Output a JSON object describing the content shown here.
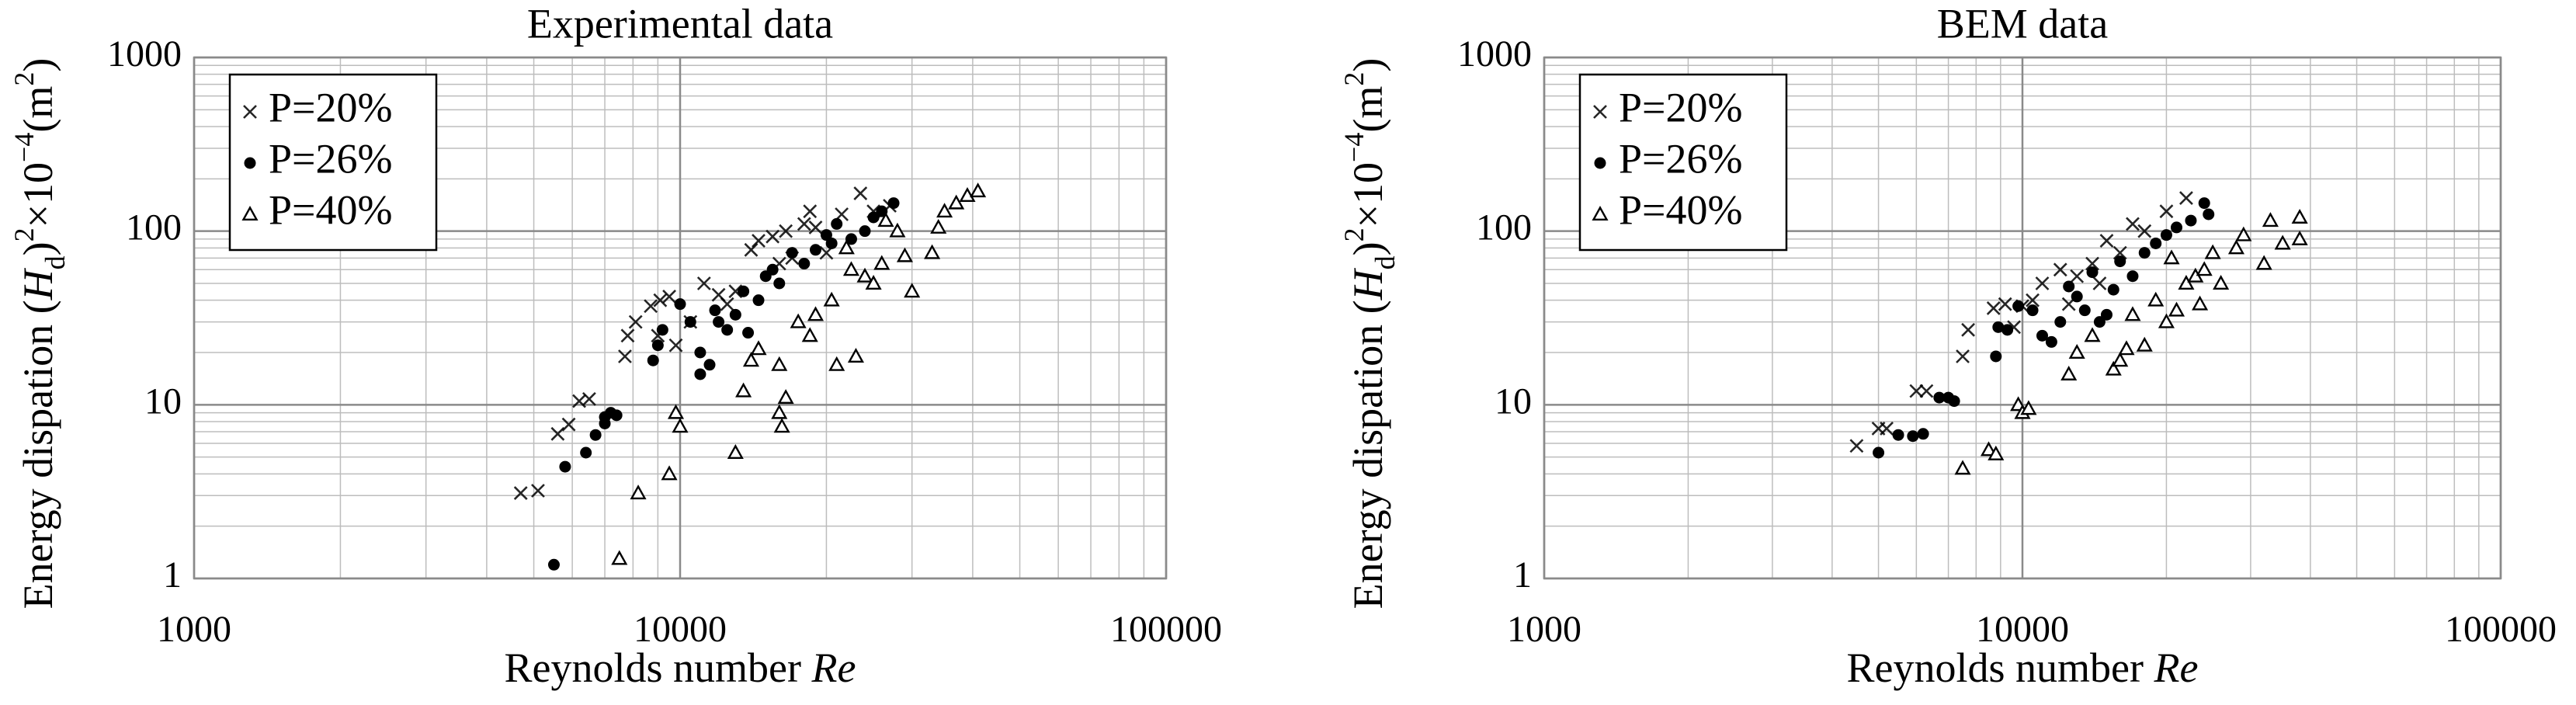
{
  "chart_data": [
    {
      "type": "scatter",
      "title": "Experimental data",
      "xlabel": [
        "Reynolds number ",
        "Re"
      ],
      "ylabel": [
        "Energy dispation (",
        "H",
        "d",
        ")",
        "2",
        "×10",
        "−4",
        "(m",
        "2",
        ")"
      ],
      "xscale": "log",
      "yscale": "log",
      "grid": true,
      "minor_grid": true,
      "legend": "upper left",
      "xlim": [
        1000,
        100000
      ],
      "ylim": [
        1,
        1000
      ],
      "xticks": [
        1000,
        10000,
        100000
      ],
      "yticks": [
        1,
        10,
        100,
        1000
      ],
      "series": [
        {
          "name": "P=20%",
          "color": "#000000",
          "marker": "x",
          "x": [
            4700,
            5100,
            5600,
            5900,
            6200,
            6500,
            7700,
            7800,
            8100,
            8700,
            9100,
            9500,
            9000,
            9800,
            10500,
            11200,
            12000,
            12500,
            13000,
            14000,
            14500,
            15500,
            16000,
            17000,
            18500,
            19000,
            20000,
            21500,
            23500,
            25000,
            27000,
            18000,
            16500
          ],
          "values": [
            3.1,
            3.2,
            6.8,
            7.7,
            10.5,
            10.8,
            19,
            25,
            30,
            37,
            40,
            42,
            25,
            22,
            30,
            50,
            43,
            38,
            45,
            78,
            88,
            93,
            65,
            70,
            130,
            105,
            75,
            125,
            165,
            130,
            140,
            110,
            100
          ]
        },
        {
          "name": "P=26%",
          "color": "#000000",
          "marker": "circle",
          "x": [
            5500,
            5800,
            6400,
            6700,
            7000,
            7200,
            7400,
            7000,
            8800,
            9000,
            9200,
            10000,
            10500,
            11000,
            11500,
            11000,
            11800,
            12000,
            12500,
            13000,
            13500,
            14500,
            15000,
            15500,
            16000,
            17000,
            18000,
            19000,
            20000,
            21000,
            22500,
            24000,
            25000,
            26000,
            27500,
            20500,
            13800
          ],
          "values": [
            1.2,
            4.4,
            5.3,
            6.7,
            8.5,
            9,
            8.7,
            7.8,
            18,
            22,
            27,
            38,
            30,
            20,
            17,
            15,
            35,
            30,
            27,
            33,
            45,
            40,
            55,
            60,
            50,
            75,
            65,
            78,
            95,
            110,
            90,
            100,
            120,
            130,
            145,
            85,
            26
          ]
        },
        {
          "name": "P=40%",
          "color": "#000000",
          "marker": "triangle",
          "x": [
            7500,
            8200,
            9500,
            9800,
            10000,
            13000,
            13500,
            14000,
            14500,
            16000,
            16500,
            16200,
            16000,
            17500,
            18500,
            19000,
            20500,
            21000,
            22500,
            23000,
            24000,
            25000,
            26000,
            28000,
            29000,
            30000,
            33000,
            34000,
            35000,
            37000,
            39000,
            41000,
            22000,
            26500
          ],
          "values": [
            1.3,
            3.1,
            4,
            9,
            7.5,
            5.3,
            12,
            18,
            21,
            9,
            11,
            7.5,
            17,
            30,
            25,
            33,
            40,
            17,
            60,
            19,
            55,
            50,
            65,
            100,
            72,
            45,
            75,
            105,
            130,
            145,
            160,
            170,
            80,
            115
          ]
        }
      ]
    },
    {
      "type": "scatter",
      "title": "BEM data",
      "xlabel": [
        "Reynolds number ",
        "Re"
      ],
      "ylabel": [
        "Energy dispation (",
        "H",
        "d",
        ")",
        "2",
        "×10",
        "−4",
        "(m",
        "2",
        ")"
      ],
      "xscale": "log",
      "yscale": "log",
      "grid": true,
      "minor_grid": true,
      "legend": "upper left",
      "xlim": [
        1000,
        100000
      ],
      "ylim": [
        1,
        1000
      ],
      "xticks": [
        1000,
        10000,
        100000
      ],
      "yticks": [
        1,
        10,
        100,
        1000
      ],
      "series": [
        {
          "name": "P=20%",
          "color": "#000000",
          "marker": "x",
          "x": [
            4500,
            5000,
            5200,
            6000,
            6300,
            7500,
            7700,
            8700,
            9200,
            10000,
            10500,
            11000,
            12000,
            13000,
            14000,
            15000,
            16000,
            17000,
            18000,
            20000,
            22000,
            9600,
            12500,
            14500
          ],
          "values": [
            5.8,
            7.3,
            7.3,
            12,
            12,
            19,
            27,
            36,
            38,
            37,
            40,
            50,
            60,
            55,
            65,
            88,
            75,
            110,
            100,
            130,
            155,
            28,
            38,
            50
          ]
        },
        {
          "name": "P=26%",
          "color": "#000000",
          "marker": "circle",
          "x": [
            5000,
            5500,
            5900,
            6200,
            6700,
            7000,
            7200,
            8800,
            8900,
            9300,
            9800,
            10500,
            11000,
            11500,
            12000,
            12500,
            13000,
            13500,
            14000,
            14500,
            15500,
            16000,
            17000,
            18000,
            19000,
            20000,
            21000,
            22500,
            24000,
            24500,
            15000
          ],
          "values": [
            5.3,
            6.7,
            6.6,
            6.8,
            11,
            11,
            10.5,
            19,
            28,
            27,
            37,
            35,
            25,
            23,
            30,
            48,
            42,
            35,
            58,
            30,
            46,
            67,
            55,
            75,
            85,
            95,
            105,
            115,
            145,
            125,
            33
          ]
        },
        {
          "name": "P=40%",
          "color": "#000000",
          "marker": "triangle",
          "x": [
            7500,
            8500,
            8800,
            9800,
            10000,
            10300,
            12500,
            13000,
            14000,
            15500,
            16000,
            16500,
            17000,
            18000,
            19000,
            20000,
            21000,
            22000,
            23000,
            24000,
            25000,
            26000,
            28000,
            29000,
            32000,
            33000,
            35000,
            38000,
            38000,
            20500,
            23500
          ],
          "values": [
            4.3,
            5.5,
            5.2,
            10,
            9,
            9.5,
            15,
            20,
            25,
            16,
            18,
            21,
            33,
            22,
            40,
            30,
            35,
            50,
            55,
            60,
            75,
            50,
            80,
            95,
            65,
            115,
            85,
            90,
            120,
            70,
            38
          ]
        }
      ]
    }
  ]
}
